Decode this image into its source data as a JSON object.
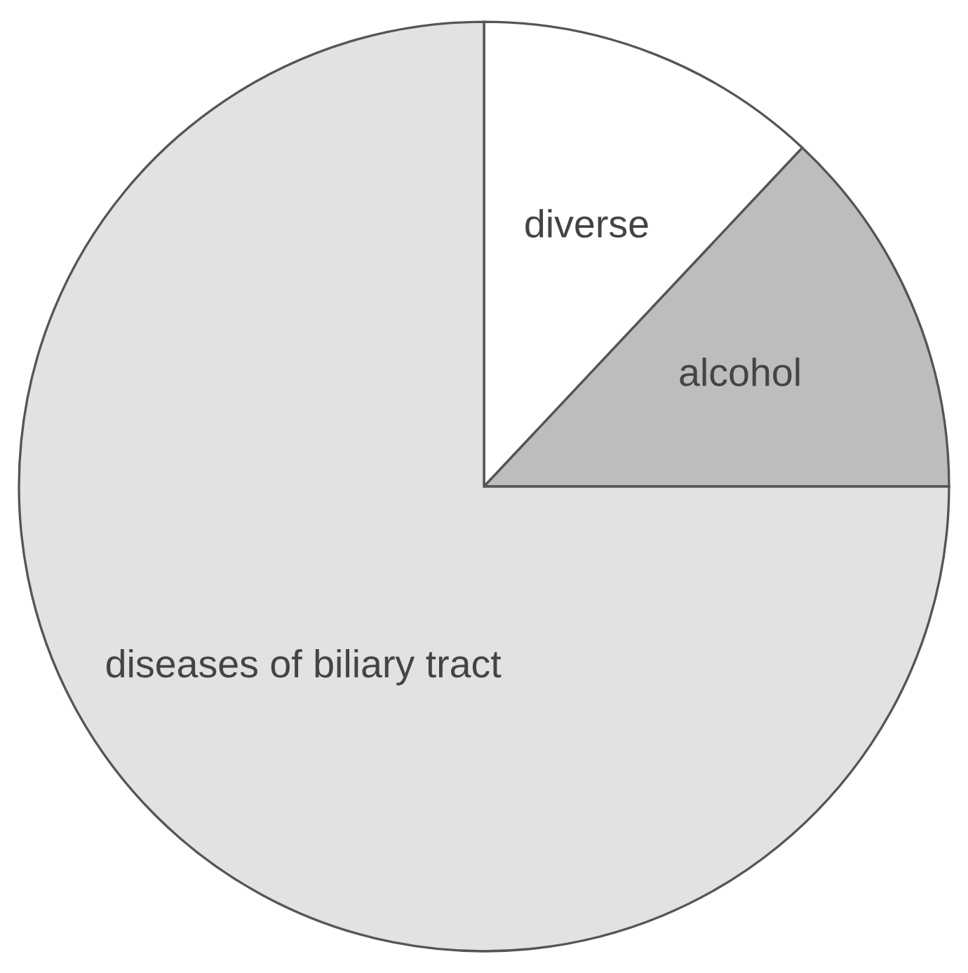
{
  "chart_data": {
    "type": "pie",
    "categories": [
      "diverse",
      "alcohol",
      "diseases of biliary tract"
    ],
    "values": [
      12,
      13,
      75
    ],
    "colors": [
      "#ffffff",
      "#bdbdbd",
      "#e2e2e2"
    ]
  }
}
